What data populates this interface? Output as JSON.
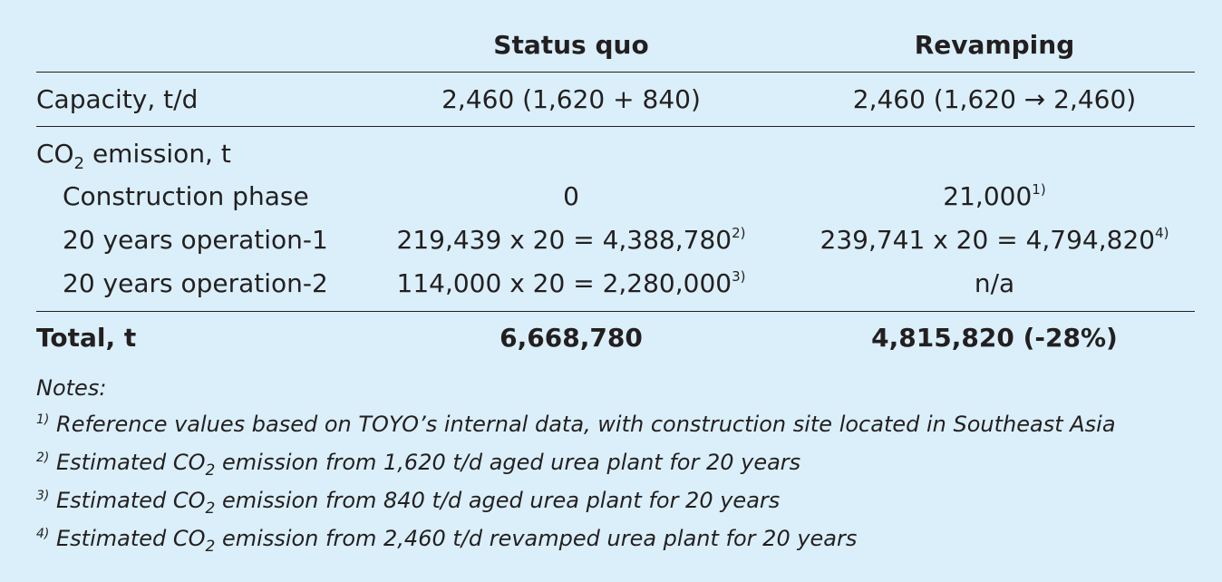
{
  "table": {
    "header": [
      "Status quo",
      "Revamping"
    ],
    "capacity": {
      "label": "Capacity, t/d",
      "values": [
        "2,460 (1,620 + 840)",
        "2,460 (1,620 → 2,460)"
      ]
    },
    "co2": {
      "label": {
        "before": "CO",
        "sub": "2",
        "after": " emission, t"
      },
      "rows": [
        {
          "label": "Construction phase",
          "values": [
            {
              "text": "0"
            },
            {
              "text": "21,000",
              "note": "1)"
            }
          ]
        },
        {
          "label": "20 years operation-1",
          "values": [
            {
              "text": "219,439 x 20 = 4,388,780",
              "note": "2)"
            },
            {
              "text": "239,741 x 20 = 4,794,820",
              "note": "4)"
            }
          ]
        },
        {
          "label": "20 years operation-2",
          "values": [
            {
              "text": "114,000 x 20 = 2,280,000",
              "note": "3)"
            },
            {
              "text": "n/a"
            }
          ]
        }
      ]
    },
    "total": {
      "label": "Total, t",
      "values": [
        "6,668,780",
        "4,815,820 (-28%)"
      ]
    }
  },
  "notes": {
    "title": "Notes:",
    "items": [
      {
        "marker": "1)",
        "text": "Reference values based on TOYO’s internal data, with construction site located in Southeast Asia"
      },
      {
        "marker": "2)",
        "before": "Estimated CO",
        "sub": "2",
        "after": " emission from 1,620 t/d aged urea plant for 20 years"
      },
      {
        "marker": "3)",
        "before": "Estimated CO",
        "sub": "2",
        "after": " emission from 840 t/d aged urea plant for 20 years"
      },
      {
        "marker": "4)",
        "before": "Estimated CO",
        "sub": "2",
        "after": " emission from 2,460 t/d revamped urea plant for 20 years"
      }
    ]
  }
}
